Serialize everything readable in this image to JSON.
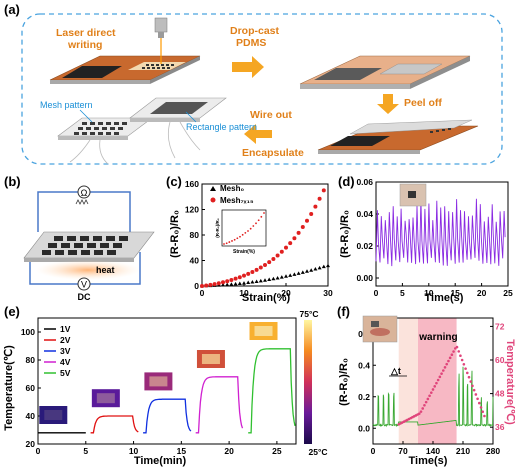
{
  "panel_a": {
    "label": "(a)",
    "steps": {
      "laser": [
        "Laser direct",
        "writing"
      ],
      "dropcast": [
        "Drop-cast",
        "PDMS"
      ],
      "peel": "Peel off",
      "wire": [
        "Wire out",
        "Encapsulate"
      ],
      "mesh": "Mesh pattern",
      "rect": "Rectangle pattern"
    }
  },
  "panel_b": {
    "label": "(b)",
    "ohm": "Ω",
    "heat": "heat",
    "volt": "V",
    "dc": "DC"
  },
  "colors": {
    "copper": "#c8692e",
    "arrow": "#f5a623",
    "dashed": "#4aa3df",
    "blue_text": "#1a8fd6",
    "purple": "#8a2be2",
    "green": "#3aa832",
    "pink_temp": "#e0457b",
    "red_marker": "#e02020"
  },
  "chart_data": [
    {
      "panel": "(c)",
      "type": "scatter",
      "xlabel": "Strain(%)",
      "ylabel": "(R-R₀)/R₀",
      "xlim": [
        0,
        30
      ],
      "ylim": [
        0,
        160
      ],
      "xticks": [
        0,
        10,
        20,
        30
      ],
      "yticks": [
        0,
        40,
        80,
        120,
        160
      ],
      "legend": [
        "Mesh₀",
        "Mesh₇ₓ₁₅"
      ],
      "series": [
        {
          "name": "Mesh₀",
          "marker": "triangle",
          "x": [
            0,
            1,
            2,
            3,
            4,
            5,
            6,
            7,
            8,
            9,
            10,
            11,
            12,
            13,
            14,
            15,
            16,
            17,
            18,
            19,
            20,
            21,
            22,
            23,
            24,
            25,
            26,
            27,
            28,
            29,
            30
          ],
          "y": [
            0,
            0.3,
            0.6,
            0.9,
            1.3,
            1.7,
            2.2,
            2.7,
            3.3,
            3.9,
            4.6,
            5.4,
            6.2,
            7.1,
            8.1,
            9.1,
            10.2,
            11.4,
            12.6,
            13.9,
            15.3,
            16.7,
            18.2,
            19.8,
            21.4,
            23.1,
            24.8,
            26.6,
            28.4,
            30.3,
            32
          ]
        },
        {
          "name": "Mesh₇ₓ₁₅",
          "marker": "circle",
          "x": [
            0,
            1,
            2,
            3,
            4,
            5,
            6,
            7,
            8,
            9,
            10,
            11,
            12,
            13,
            14,
            15,
            16,
            17,
            18,
            19,
            20,
            21,
            22,
            23,
            24,
            25,
            26,
            27,
            28,
            29
          ],
          "y": [
            0,
            0.8,
            1.8,
            3,
            4.3,
            5.8,
            7.5,
            9.4,
            11.5,
            13.8,
            16.3,
            19,
            22,
            25.3,
            29,
            33,
            37.5,
            42.4,
            47.8,
            53.7,
            60.2,
            67.3,
            75,
            83.4,
            92.5,
            102.3,
            113,
            124.5,
            136.8,
            150
          ]
        }
      ],
      "inset": {
        "ylabel": "(R-R₀)/R₀",
        "xlabel": "Strain(%)",
        "x": [
          0,
          1,
          2,
          3,
          4,
          5,
          6,
          7,
          8,
          9,
          10,
          11,
          12,
          13,
          14,
          15
        ],
        "y": [
          0,
          0.2,
          0.5,
          0.8,
          1.1,
          1.5,
          1.9,
          2.4,
          2.9,
          3.4,
          4,
          4.7,
          5.4,
          6.2,
          7.1,
          8.1
        ]
      }
    },
    {
      "panel": "(d)",
      "type": "line",
      "xlabel": "Time(s)",
      "ylabel": "(R-R₀)/R₀",
      "xlim": [
        0,
        25
      ],
      "ylim": [
        -0.005,
        0.06
      ],
      "xticks": [
        0,
        5,
        10,
        15,
        20,
        25
      ],
      "yticks": [
        0.0,
        0.02,
        0.04,
        0.06
      ],
      "ytick_labels": [
        "0.00",
        "0.02",
        "0.04",
        "0.06"
      ],
      "period": 0.75,
      "peak_range": [
        0.035,
        0.05
      ],
      "base": 0.01
    },
    {
      "panel": "(e)",
      "type": "line",
      "xlabel": "Time(min)",
      "ylabel": "Temperature(℃)",
      "xlim": [
        0,
        27
      ],
      "ylim": [
        20,
        110
      ],
      "xticks": [
        0,
        5,
        10,
        15,
        20,
        25
      ],
      "yticks": [
        20,
        40,
        60,
        80,
        100
      ],
      "colorbar": {
        "top": "75°C",
        "bottom": "25°C"
      },
      "series": [
        {
          "name": "1V",
          "color": "#000000",
          "start": 0,
          "end": 5,
          "plateau": 28
        },
        {
          "name": "2V",
          "color": "#e01010",
          "start": 5.5,
          "end": 10.5,
          "plateau": 40
        },
        {
          "name": "3V",
          "color": "#1030e0",
          "start": 11,
          "end": 16,
          "plateau": 52
        },
        {
          "name": "4V",
          "color": "#d020d0",
          "start": 16.5,
          "end": 21.5,
          "plateau": 68
        },
        {
          "name": "5V",
          "color": "#30c030",
          "start": 22,
          "end": 27,
          "plateau": 88
        }
      ]
    },
    {
      "panel": "(f)",
      "type": "line",
      "xlabel": "Time(s)",
      "ylabel": "(R-R₀)/R₀",
      "y2label": "Temperature(℃)",
      "xlim": [
        0,
        280
      ],
      "ylim": [
        -0.1,
        0.7
      ],
      "y2lim": [
        30,
        75
      ],
      "xticks": [
        0,
        70,
        140,
        210,
        280
      ],
      "yticks": [
        0.0,
        0.2,
        0.4,
        0.6
      ],
      "ytick_labels": [
        "0.0",
        "0.2",
        "0.4",
        "0.6"
      ],
      "y2ticks": [
        36,
        48,
        60,
        72
      ],
      "annotations": {
        "warning": "warning",
        "delta": "△t"
      },
      "warning_span": [
        105,
        195
      ],
      "light_span": [
        60,
        105
      ]
    }
  ]
}
